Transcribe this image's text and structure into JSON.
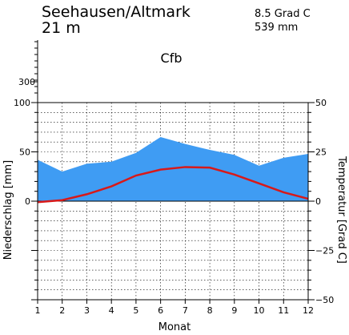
{
  "header": {
    "station": "Seehausen/Altmark",
    "elevation": "21 m",
    "mean_temp": "8.5 Grad C",
    "annual_precip": "539 mm",
    "climate_class": "Cfb"
  },
  "chart_data": {
    "type": "area",
    "title": "Seehausen/Altmark",
    "xlabel": "Monat",
    "ylabel_left": "Niederschlag [mm]",
    "ylabel_right": "Temperatur [Grad C]",
    "x": [
      1,
      2,
      3,
      4,
      5,
      6,
      7,
      8,
      9,
      10,
      11,
      12
    ],
    "x_ticks": [
      "1",
      "2",
      "3",
      "4",
      "5",
      "6",
      "7",
      "8",
      "9",
      "10",
      "11",
      "12"
    ],
    "xlim": [
      1,
      12
    ],
    "precip_ylim": [
      -100,
      100
    ],
    "temp_ylim": [
      -50,
      50
    ],
    "upper_axis_tick_label": "300",
    "upper_axis_top_label": "100",
    "left_ticks": [
      "100",
      "50",
      "0"
    ],
    "right_ticks": [
      "50",
      "25",
      "0",
      "−25",
      "−50"
    ],
    "grid": true,
    "series": [
      {
        "name": "Niederschlag",
        "axis": "left",
        "color": "#3f9cf3",
        "values": [
          42,
          30,
          38,
          40,
          49,
          65,
          58,
          52,
          47,
          36,
          44,
          48
        ]
      },
      {
        "name": "Temperatur",
        "axis": "right",
        "color": "#d81919",
        "values": [
          -0.5,
          0.5,
          3.5,
          7.5,
          13,
          16,
          17.3,
          17,
          13.5,
          9,
          4.5,
          1.2
        ]
      }
    ]
  }
}
